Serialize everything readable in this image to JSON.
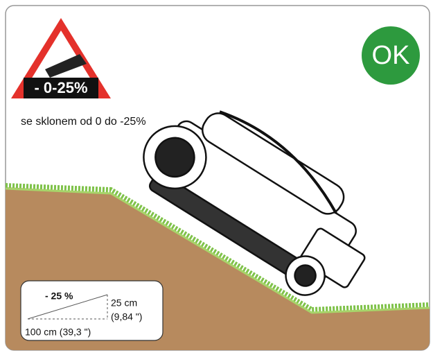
{
  "warning_sign": {
    "label": "- 0-25%"
  },
  "status": "OK",
  "caption": "se sklonem od 0 do -25%",
  "slope_box": {
    "percent": "- 25 %",
    "rise": "25 cm",
    "rise_inches": "(9,84 \")",
    "run": "100 cm (39,3 \")"
  }
}
